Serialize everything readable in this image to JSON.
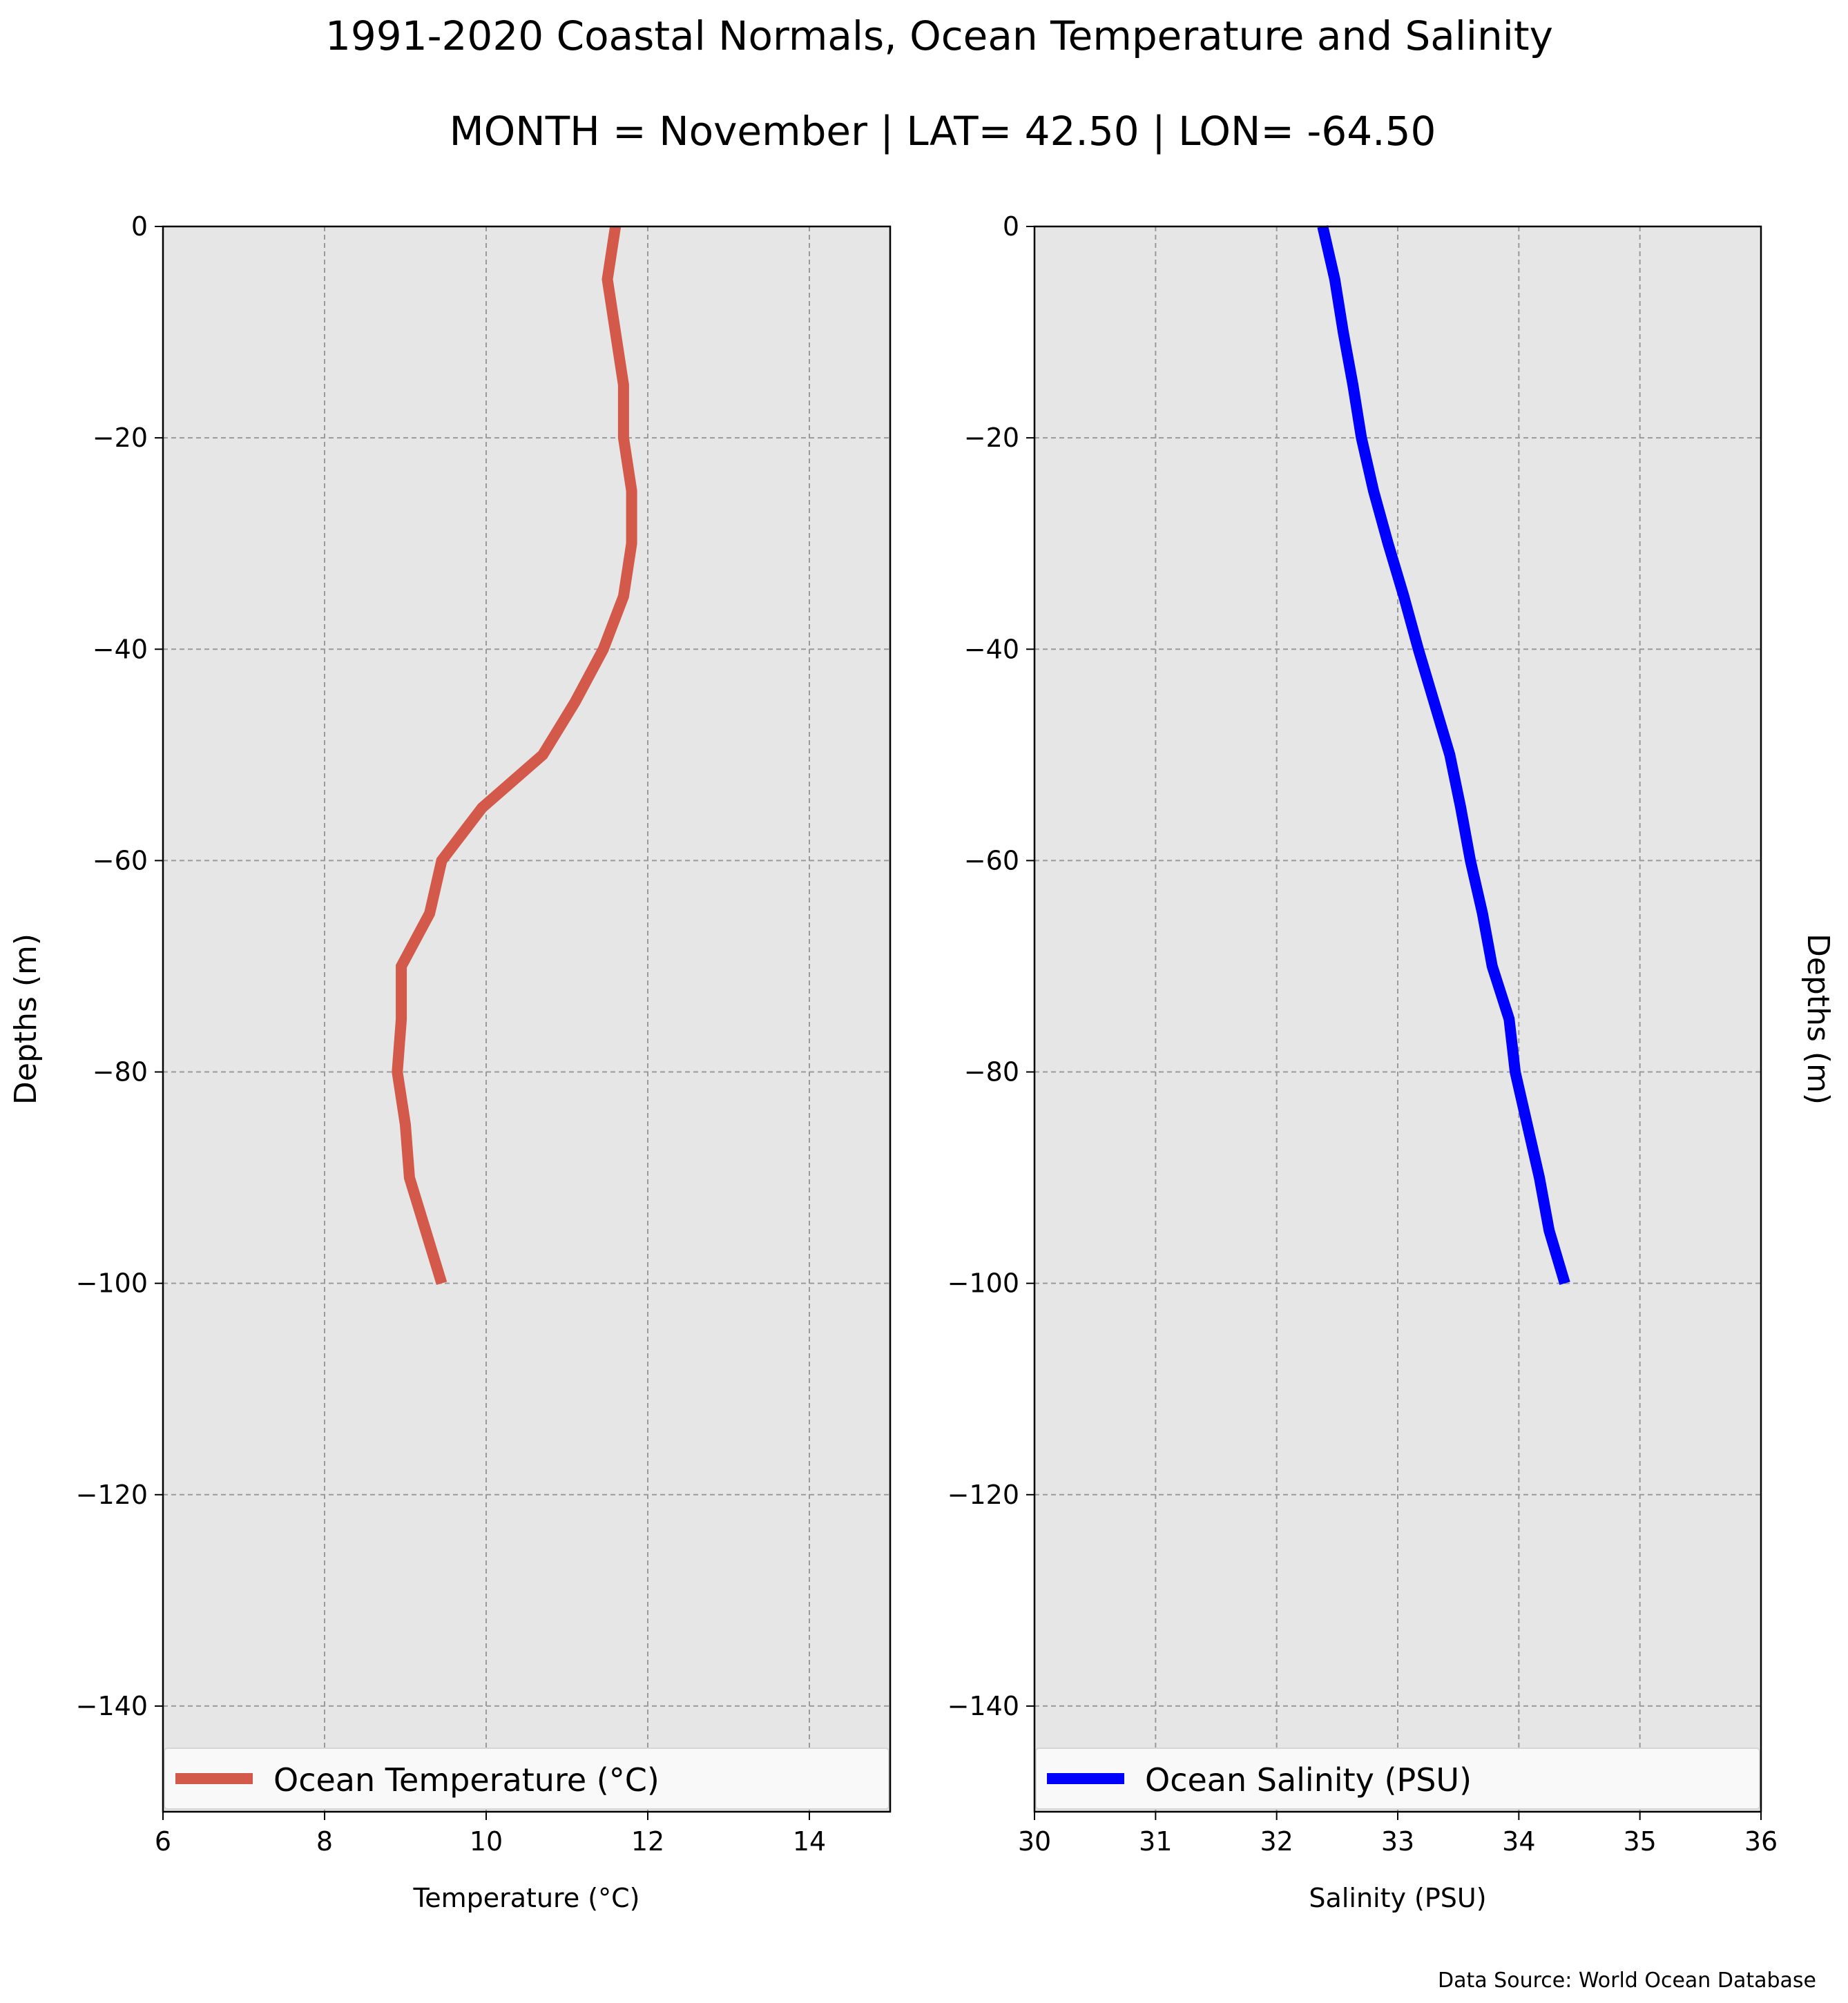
{
  "figure": {
    "title": "1991-2020 Coastal Normals, Ocean Temperature and Salinity",
    "subtitle": "MONTH = November | LAT= 42.50 | LON= -64.50",
    "source_note": "Data Source: World Ocean Database"
  },
  "chart_data": [
    {
      "type": "line",
      "xlabel": "Temperature ($^\\circ$C)",
      "xlabel_display": "Temperature (°C)",
      "ylabel": "Depths (m)",
      "xlim": [
        6,
        15
      ],
      "ylim": [
        -150,
        0
      ],
      "xticks": [
        6,
        8,
        10,
        12,
        14
      ],
      "xtick_labels": [
        "6",
        "8",
        "10",
        "12",
        "14"
      ],
      "yticks": [
        0,
        -20,
        -40,
        -60,
        -80,
        -100,
        -120,
        -140
      ],
      "ytick_labels": [
        "0",
        "−20",
        "−40",
        "−60",
        "−80",
        "−100",
        "−120",
        "−140"
      ],
      "grid": true,
      "background": "#e6e6e6",
      "legend_placement": "bottom",
      "series": [
        {
          "name": "Ocean Temperature (°C)",
          "color": "#d35a4a",
          "points": [
            {
              "x": 11.6,
              "y": 0
            },
            {
              "x": 11.5,
              "y": -5
            },
            {
              "x": 11.6,
              "y": -10
            },
            {
              "x": 11.7,
              "y": -15
            },
            {
              "x": 11.7,
              "y": -20
            },
            {
              "x": 11.8,
              "y": -25
            },
            {
              "x": 11.8,
              "y": -30
            },
            {
              "x": 11.7,
              "y": -35
            },
            {
              "x": 11.45,
              "y": -40
            },
            {
              "x": 11.1,
              "y": -45
            },
            {
              "x": 10.7,
              "y": -50
            },
            {
              "x": 9.95,
              "y": -55
            },
            {
              "x": 9.45,
              "y": -60
            },
            {
              "x": 9.3,
              "y": -65
            },
            {
              "x": 8.95,
              "y": -70
            },
            {
              "x": 8.95,
              "y": -75
            },
            {
              "x": 8.9,
              "y": -80
            },
            {
              "x": 9.0,
              "y": -85
            },
            {
              "x": 9.05,
              "y": -90
            },
            {
              "x": 9.25,
              "y": -95
            },
            {
              "x": 9.45,
              "y": -100
            }
          ]
        }
      ]
    },
    {
      "type": "line",
      "xlabel": "Salinity (PSU)",
      "ylabel": "Depths (m)",
      "xlim": [
        30,
        36
      ],
      "ylim": [
        -150,
        0
      ],
      "xticks": [
        30,
        31,
        32,
        33,
        34,
        35,
        36
      ],
      "xtick_labels": [
        "30",
        "31",
        "32",
        "33",
        "34",
        "35",
        "36"
      ],
      "yticks": [
        0,
        -20,
        -40,
        -60,
        -80,
        -100,
        -120,
        -140
      ],
      "ytick_labels": [
        "0",
        "−20",
        "−40",
        "−60",
        "−80",
        "−100",
        "−120",
        "−140"
      ],
      "grid": true,
      "background": "#e6e6e6",
      "legend_placement": "bottom",
      "series": [
        {
          "name": "Ocean Salinity (PSU)",
          "color": "#0000ff",
          "points": [
            {
              "x": 32.38,
              "y": 0
            },
            {
              "x": 32.48,
              "y": -5
            },
            {
              "x": 32.55,
              "y": -10
            },
            {
              "x": 32.63,
              "y": -15
            },
            {
              "x": 32.7,
              "y": -20
            },
            {
              "x": 32.8,
              "y": -25
            },
            {
              "x": 32.92,
              "y": -30
            },
            {
              "x": 33.05,
              "y": -35
            },
            {
              "x": 33.17,
              "y": -40
            },
            {
              "x": 33.3,
              "y": -45
            },
            {
              "x": 33.43,
              "y": -50
            },
            {
              "x": 33.52,
              "y": -55
            },
            {
              "x": 33.6,
              "y": -60
            },
            {
              "x": 33.7,
              "y": -65
            },
            {
              "x": 33.78,
              "y": -70
            },
            {
              "x": 33.92,
              "y": -75
            },
            {
              "x": 33.97,
              "y": -80
            },
            {
              "x": 34.07,
              "y": -85
            },
            {
              "x": 34.17,
              "y": -90
            },
            {
              "x": 34.25,
              "y": -95
            },
            {
              "x": 34.38,
              "y": -100
            }
          ]
        }
      ]
    }
  ]
}
